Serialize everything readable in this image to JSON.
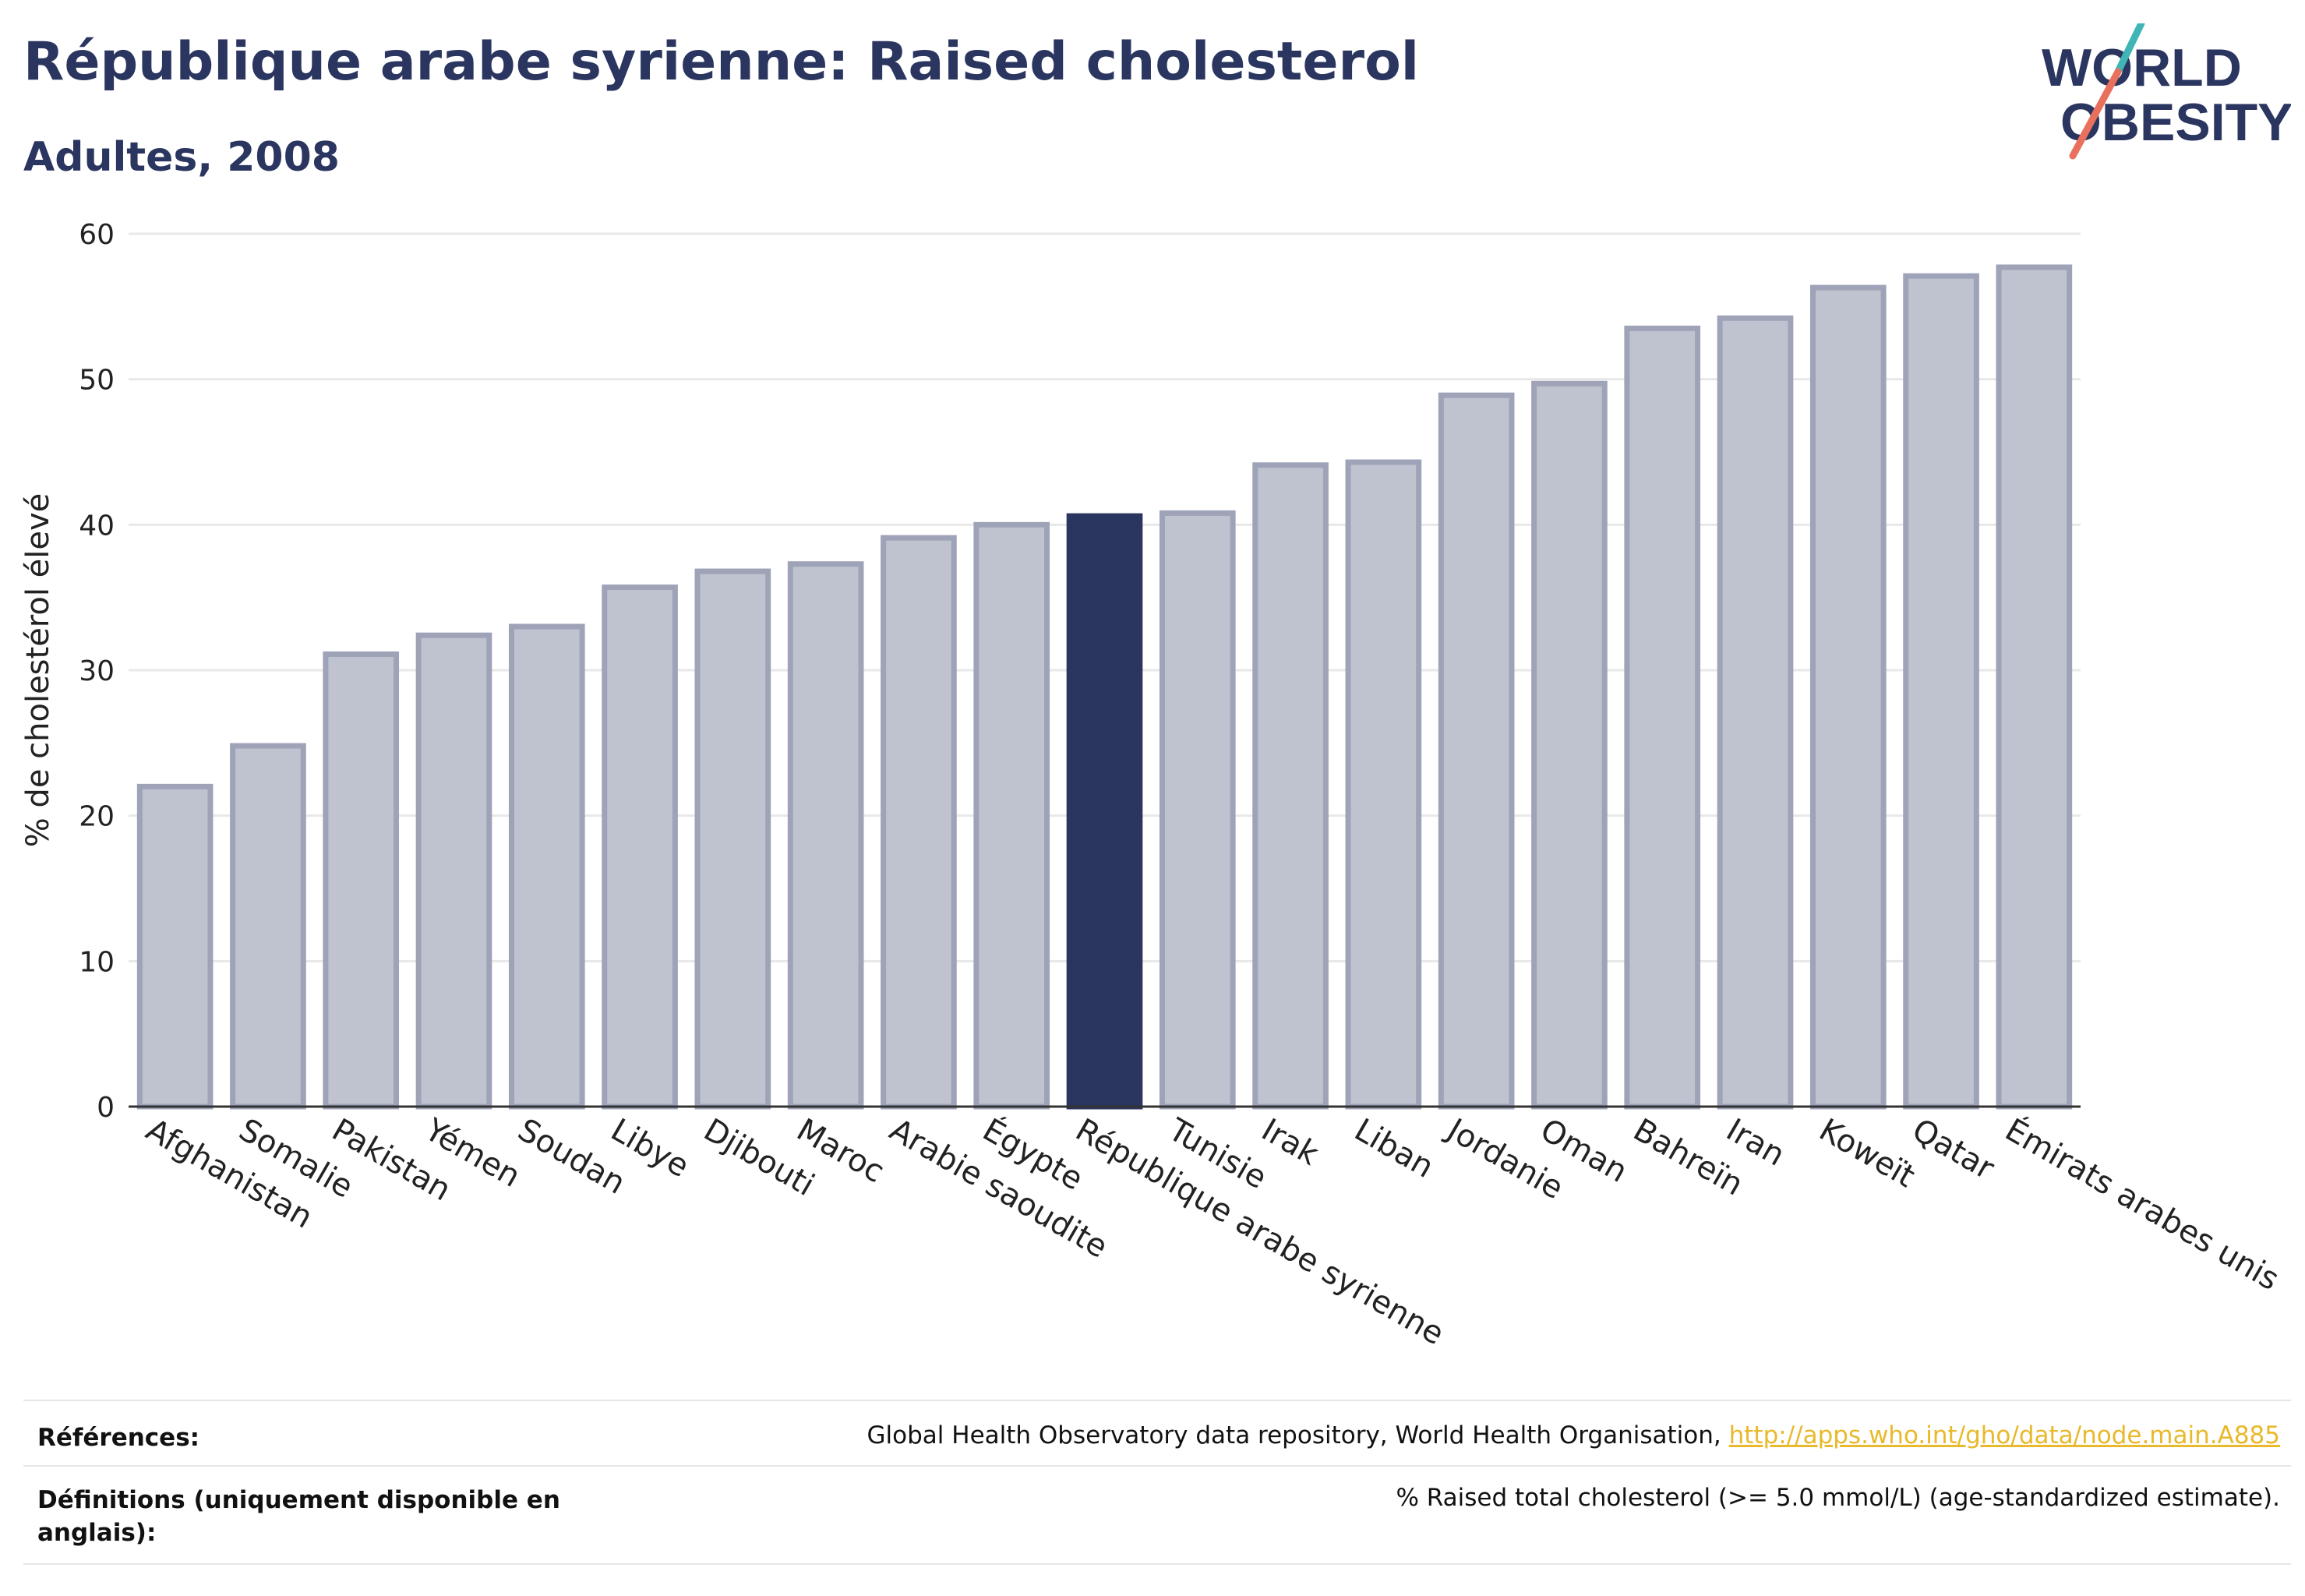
{
  "header": {
    "title": "République arabe syrienne: Raised cholesterol",
    "subtitle": "Adultes, 2008"
  },
  "logo": {
    "line1": "WORLD",
    "line2": "OBESITY"
  },
  "chart_data": {
    "type": "bar",
    "title": "République arabe syrienne: Raised cholesterol",
    "subtitle": "Adultes, 2008",
    "xlabel": "",
    "ylabel": "% de cholestérol élevé",
    "ylim": [
      0,
      60
    ],
    "yticks": [
      0,
      10,
      20,
      30,
      40,
      50,
      60
    ],
    "grid": true,
    "highlight": "République arabe syrienne",
    "categories": [
      "Afghanistan",
      "Somalie",
      "Pakistan",
      "Yémen",
      "Soudan",
      "Libye",
      "Djibouti",
      "Maroc",
      "Arabie saoudite",
      "Égypte",
      "République arabe syrienne",
      "Tunisie",
      "Irak",
      "Liban",
      "Jordanie",
      "Oman",
      "Bahreïn",
      "Iran",
      "Koweït",
      "Qatar",
      "Émirats arabes unis"
    ],
    "values": [
      22.0,
      24.8,
      31.1,
      32.4,
      33.0,
      35.7,
      36.8,
      37.3,
      39.1,
      40.0,
      40.6,
      40.8,
      44.1,
      44.3,
      48.9,
      49.7,
      53.5,
      54.2,
      56.3,
      57.1,
      57.7
    ],
    "colors": {
      "bar": "#bfc2cf",
      "bar_border": "#9ea3b8",
      "highlight": "#2a3560",
      "grid": "#e8e8e8",
      "axis": "#333333"
    }
  },
  "footer": {
    "references_label": "Références:",
    "references_text": "Global Health Observatory data repository, World Health Organisation, ",
    "references_link": "http://apps.who.int/gho/data/node.main.A885",
    "definitions_label": "Définitions (uniquement disponible en anglais):",
    "definitions_text": "% Raised total cholesterol (>= 5.0 mmol/L) (age-standardized estimate)."
  }
}
